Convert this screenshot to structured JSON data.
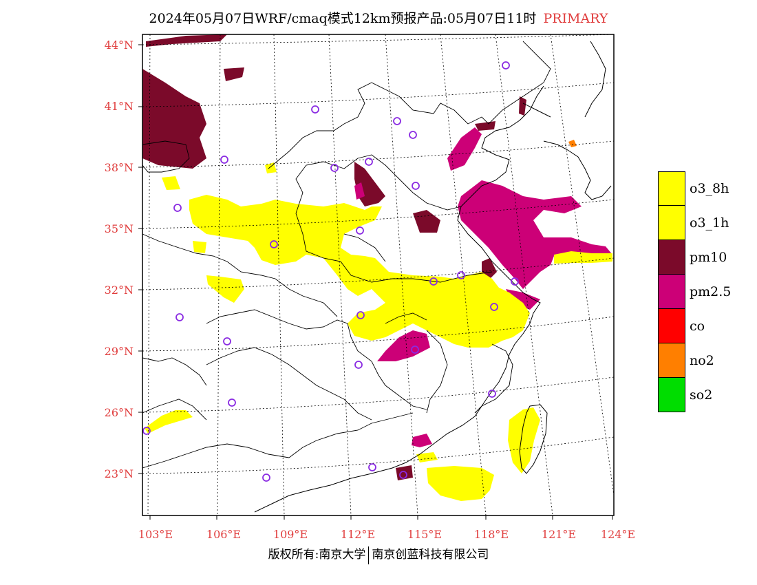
{
  "title": {
    "main": "2024年05月07日WRF/cmaq模式12km预报产品:05月07日11时",
    "tag": "PRIMARY"
  },
  "map": {
    "lat_labels": [
      "44°N",
      "41°N",
      "38°N",
      "35°N",
      "32°N",
      "29°N",
      "26°N",
      "23°N"
    ],
    "lon_labels": [
      "103°E",
      "106°E",
      "109°E",
      "112°E",
      "115°E",
      "118°E",
      "121°E",
      "124°E"
    ]
  },
  "legend": {
    "items": [
      {
        "label": "o3_8h",
        "color": "#ffff00"
      },
      {
        "label": "o3_1h",
        "color": "#ffff00"
      },
      {
        "label": "pm10",
        "color": "#7b0a2a"
      },
      {
        "label": "pm2.5",
        "color": "#cc0077"
      },
      {
        "label": "co",
        "color": "#ff0000"
      },
      {
        "label": "no2",
        "color": "#ff7f00"
      },
      {
        "label": "so2",
        "color": "#00dd00"
      }
    ]
  },
  "footer": {
    "left": "版权所有:南京大学",
    "right": "南京创蓝科技有限公司"
  }
}
